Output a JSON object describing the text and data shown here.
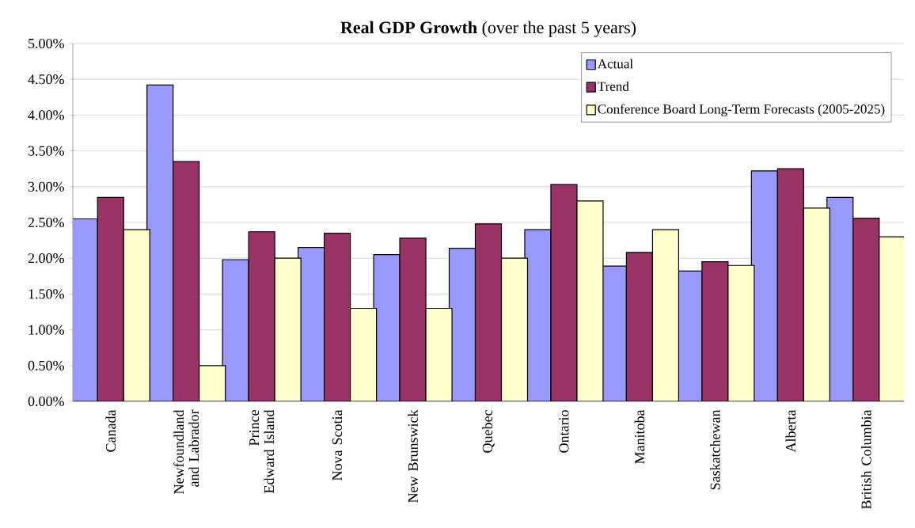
{
  "chart_data": {
    "type": "bar",
    "title": "**Real GDP Growth** (over the past 5 years)",
    "categories": [
      "Canada",
      "Newfoundland and Labrador",
      "Prince Edward Island",
      "Nova Scotia",
      "New Brunswick",
      "Quebec",
      "Ontario",
      "Manitoba",
      "Saskatchewan",
      "Alberta",
      "British Columbia"
    ],
    "series": [
      {
        "name": "Actual",
        "color": "#9999ff",
        "values": [
          2.55,
          4.42,
          1.98,
          2.15,
          2.05,
          2.14,
          2.4,
          1.89,
          1.82,
          3.22,
          2.85
        ]
      },
      {
        "name": "Trend",
        "color": "#993366",
        "values": [
          2.85,
          3.35,
          2.37,
          2.35,
          2.28,
          2.48,
          3.03,
          2.08,
          1.95,
          3.25,
          2.56
        ]
      },
      {
        "name": "Conference Board Long-Term Forecasts (2005-2025)",
        "color": "#ffffcc",
        "values": [
          2.4,
          0.5,
          2.0,
          1.3,
          1.3,
          2.0,
          2.8,
          2.4,
          1.9,
          2.7,
          2.3
        ]
      }
    ],
    "ylim": [
      0,
      5
    ],
    "yticks": [
      {
        "value": 0,
        "label": "0.00%"
      },
      {
        "value": 0.5,
        "label": "0.50%"
      },
      {
        "value": 1,
        "label": "1.00%"
      },
      {
        "value": 1.5,
        "label": "1.50%"
      },
      {
        "value": 2,
        "label": "2.00%"
      },
      {
        "value": 2.5,
        "label": "2.50%"
      },
      {
        "value": 3,
        "label": "3.00%"
      },
      {
        "value": 3.5,
        "label": "3.50%"
      },
      {
        "value": 4,
        "label": "4.00%"
      },
      {
        "value": 4.5,
        "label": "4.50%"
      },
      {
        "value": 5,
        "label": "5.00%"
      }
    ],
    "grid": "y",
    "legend": "top right"
  }
}
